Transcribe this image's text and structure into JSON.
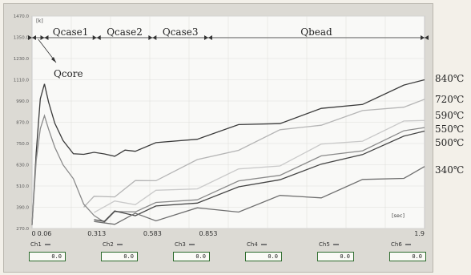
{
  "chart_data": {
    "type": "line",
    "title": "",
    "ylabel": "[k]",
    "xlabel": "[sec]",
    "x_ticks": [
      {
        "x": 0,
        "label": "0"
      },
      {
        "x": 0.06,
        "label": "0.06"
      },
      {
        "x": 0.313,
        "label": "0.313"
      },
      {
        "x": 0.583,
        "label": "0.583"
      },
      {
        "x": 0.853,
        "label": "0.853"
      },
      {
        "x": 1.9,
        "label": "1.9"
      }
    ],
    "y_ticks": [
      {
        "y": 1470,
        "label": "1470.0"
      },
      {
        "y": 1350,
        "label": "1350.0"
      },
      {
        "y": 1230,
        "label": "1230.0"
      },
      {
        "y": 1110,
        "label": "1110.0"
      },
      {
        "y": 990,
        "label": "990.0"
      },
      {
        "y": 870,
        "label": "870.0"
      },
      {
        "y": 750,
        "label": "750.0"
      },
      {
        "y": 630,
        "label": "630.0"
      },
      {
        "y": 510,
        "label": "510.0"
      },
      {
        "y": 390,
        "label": "390.0"
      },
      {
        "y": 270,
        "label": "270.0"
      }
    ],
    "xlim": [
      0,
      1.9
    ],
    "ylim": [
      270,
      1470
    ],
    "grid": true,
    "phases": [
      {
        "name": "Qcase1",
        "start": 0.06,
        "end": 0.313
      },
      {
        "name": "Qcase2",
        "start": 0.313,
        "end": 0.583
      },
      {
        "name": "Qcase3",
        "start": 0.583,
        "end": 0.853
      },
      {
        "name": "Qbead",
        "start": 0.853,
        "end": 1.9
      }
    ],
    "annotation": {
      "text": "Qcore",
      "start": 0,
      "end": 0.06
    },
    "series": [
      {
        "name": "840℃",
        "color": "#3a3a3a",
        "x": [
          0,
          0.02,
          0.04,
          0.06,
          0.08,
          0.11,
          0.15,
          0.2,
          0.25,
          0.3,
          0.35,
          0.4,
          0.45,
          0.5,
          0.6,
          0.8,
          1.0,
          1.2,
          1.4,
          1.6,
          1.8,
          1.9
        ],
        "y": [
          290,
          700,
          1000,
          1090,
          980,
          870,
          760,
          700,
          680,
          710,
          680,
          690,
          700,
          720,
          740,
          790,
          840,
          880,
          930,
          990,
          1060,
          1110
        ]
      },
      {
        "name": "720℃",
        "color": "#b5b5b5",
        "x": [
          0.25,
          0.3,
          0.4,
          0.5,
          0.6,
          0.8,
          1.0,
          1.2,
          1.4,
          1.6,
          1.8,
          1.9
        ],
        "y": [
          390,
          430,
          470,
          520,
          560,
          640,
          730,
          810,
          870,
          920,
          970,
          1000
        ]
      },
      {
        "name": "590℃",
        "color": "#c9c9c9",
        "x": [
          0.3,
          0.4,
          0.5,
          0.6,
          0.8,
          1.0,
          1.2,
          1.4,
          1.6,
          1.8,
          1.9
        ],
        "y": [
          360,
          400,
          430,
          460,
          520,
          580,
          650,
          720,
          790,
          850,
          880
        ]
      },
      {
        "name": "550℃",
        "color": "#8a8a8a",
        "x": [
          0,
          0.02,
          0.04,
          0.06,
          0.08,
          0.11,
          0.15,
          0.2,
          0.25,
          0.3,
          0.35,
          0.4,
          0.5,
          0.6,
          0.8,
          1.0,
          1.2,
          1.4,
          1.6,
          1.8,
          1.9
        ],
        "y": [
          290,
          650,
          840,
          900,
          840,
          720,
          640,
          540,
          420,
          330,
          320,
          350,
          380,
          400,
          450,
          520,
          590,
          660,
          730,
          800,
          840
        ]
      },
      {
        "name": "500℃",
        "color": "#444444",
        "x": [
          0.3,
          0.35,
          0.4,
          0.5,
          0.6,
          0.8,
          1.0,
          1.2,
          1.4,
          1.6,
          1.8,
          1.9
        ],
        "y": [
          320,
          330,
          350,
          360,
          380,
          430,
          490,
          560,
          620,
          700,
          780,
          820
        ]
      },
      {
        "name": "340℃",
        "color": "#6f6f6f",
        "x": [
          0.3,
          0.4,
          0.5,
          0.6,
          0.8,
          1.0,
          1.2,
          1.4,
          1.6,
          1.8,
          1.9
        ],
        "y": [
          310,
          320,
          330,
          340,
          360,
          390,
          430,
          470,
          520,
          580,
          620
        ]
      }
    ]
  },
  "channels": [
    {
      "label": "Ch1",
      "value": "0.0"
    },
    {
      "label": "Ch2",
      "value": "0.0"
    },
    {
      "label": "Ch3",
      "value": "0.0"
    },
    {
      "label": "Ch4",
      "value": "0.0"
    },
    {
      "label": "Ch5",
      "value": "0.0"
    },
    {
      "label": "Ch6",
      "value": "0.0"
    }
  ]
}
